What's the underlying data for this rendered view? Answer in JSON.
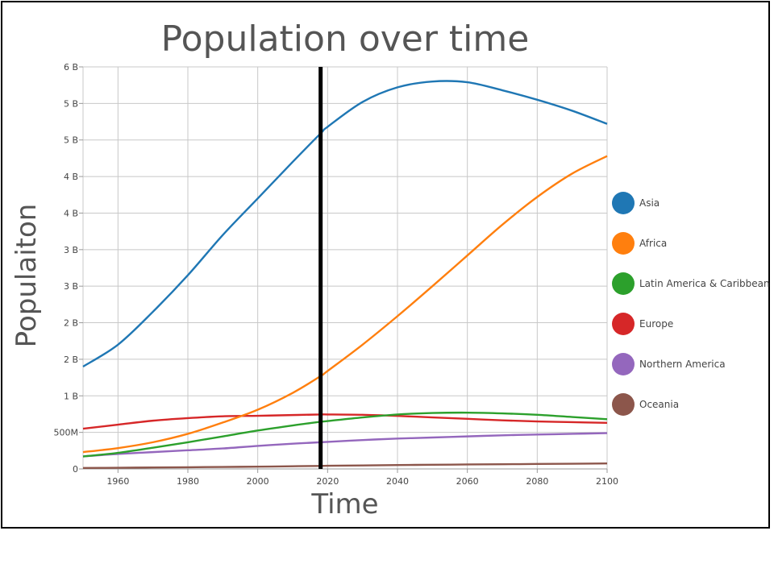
{
  "chart_data": {
    "type": "line",
    "title": "Population over time",
    "xlabel": "Time",
    "ylabel": "Populaiton",
    "xlim": [
      1950,
      2100
    ],
    "ylim": [
      0,
      5500000000
    ],
    "x_ticks": [
      1960,
      1980,
      2000,
      2020,
      2040,
      2060,
      2080,
      2100
    ],
    "y_ticks": [
      {
        "value": 0,
        "label": "0"
      },
      {
        "value": 500000000,
        "label": "500M"
      },
      {
        "value": 1000000000,
        "label": "1 B"
      },
      {
        "value": 1500000000,
        "label": "2 B"
      },
      {
        "value": 2000000000,
        "label": "2 B"
      },
      {
        "value": 2500000000,
        "label": "3 B"
      },
      {
        "value": 3000000000,
        "label": "3 B"
      },
      {
        "value": 3500000000,
        "label": "4 B"
      },
      {
        "value": 4000000000,
        "label": "4 B"
      },
      {
        "value": 4500000000,
        "label": "5 B"
      },
      {
        "value": 5000000000,
        "label": "5 B"
      },
      {
        "value": 5500000000,
        "label": "6 B"
      }
    ],
    "grid": true,
    "legend_position": "right",
    "vertical_marker_x": 2018,
    "x": [
      1950,
      1960,
      1970,
      1980,
      1990,
      2000,
      2010,
      2018,
      2020,
      2030,
      2040,
      2050,
      2060,
      2070,
      2080,
      2090,
      2100
    ],
    "series": [
      {
        "name": "Asia",
        "color": "#1f77b4",
        "values": [
          1400000000,
          1700000000,
          2150000000,
          2650000000,
          3200000000,
          3700000000,
          4200000000,
          4590000000,
          4680000000,
          5020000000,
          5220000000,
          5300000000,
          5290000000,
          5180000000,
          5050000000,
          4900000000,
          4720000000
        ]
      },
      {
        "name": "Africa",
        "color": "#ff7f0e",
        "values": [
          230000000,
          285000000,
          365000000,
          480000000,
          635000000,
          810000000,
          1040000000,
          1270000000,
          1340000000,
          1700000000,
          2090000000,
          2500000000,
          2920000000,
          3340000000,
          3720000000,
          4040000000,
          4280000000
        ]
      },
      {
        "name": "Latin America & Caribbean",
        "color": "#2ca02c",
        "values": [
          170000000,
          220000000,
          290000000,
          365000000,
          445000000,
          525000000,
          595000000,
          645000000,
          655000000,
          705000000,
          745000000,
          765000000,
          770000000,
          760000000,
          740000000,
          710000000,
          680000000
        ]
      },
      {
        "name": "Europe",
        "color": "#d62728",
        "values": [
          550000000,
          605000000,
          660000000,
          695000000,
          720000000,
          727000000,
          737000000,
          745000000,
          745000000,
          740000000,
          725000000,
          705000000,
          685000000,
          665000000,
          650000000,
          640000000,
          630000000
        ]
      },
      {
        "name": "Northern America",
        "color": "#9467bd",
        "values": [
          172000000,
          205000000,
          230000000,
          255000000,
          280000000,
          315000000,
          345000000,
          365000000,
          370000000,
          395000000,
          415000000,
          430000000,
          445000000,
          460000000,
          470000000,
          480000000,
          490000000
        ]
      },
      {
        "name": "Oceania",
        "color": "#8c564b",
        "values": [
          13000000,
          16000000,
          20000000,
          23000000,
          27000000,
          31000000,
          37000000,
          41000000,
          43000000,
          48000000,
          53000000,
          57000000,
          61000000,
          64000000,
          68000000,
          71000000,
          75000000
        ]
      }
    ]
  }
}
